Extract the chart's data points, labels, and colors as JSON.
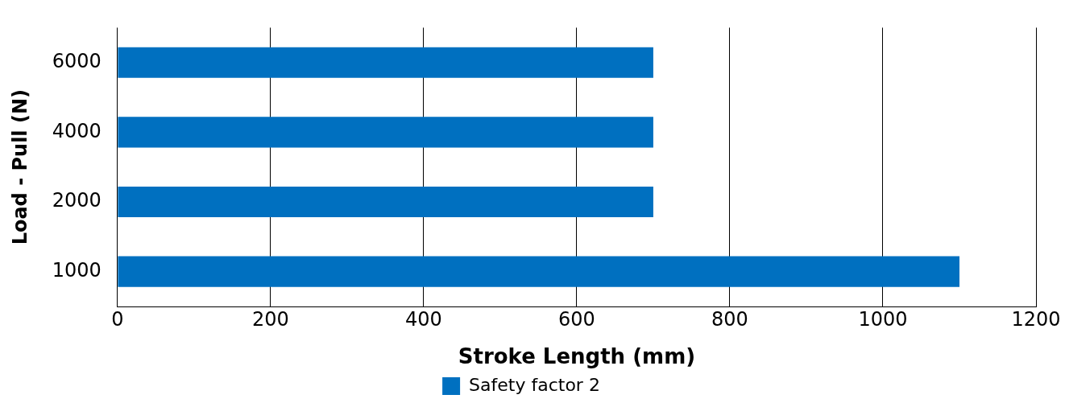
{
  "chart_data": {
    "type": "bar",
    "orientation": "horizontal",
    "xlabel": "Stroke Length (mm)",
    "ylabel": "Load - Pull (N)",
    "categories": [
      "6000",
      "4000",
      "2000",
      "1000"
    ],
    "series": [
      {
        "name": "Safety factor 2",
        "color": "#0070c0",
        "values": [
          700,
          700,
          700,
          1100
        ]
      }
    ],
    "xlim": [
      0,
      1200
    ],
    "xticks": [
      0,
      200,
      400,
      600,
      800,
      1000,
      1200
    ],
    "grid": "x",
    "legend": "bottom"
  }
}
